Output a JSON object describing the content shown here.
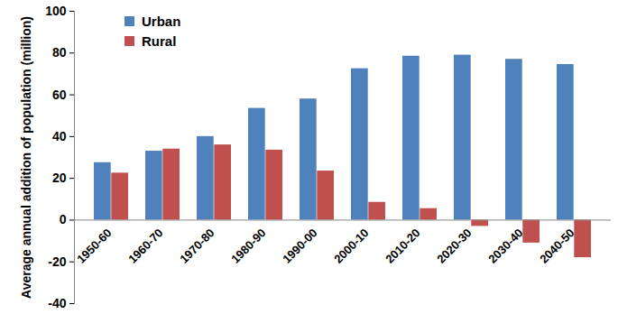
{
  "chart_data": {
    "type": "bar",
    "y_label": "Average annual addition of population (million)",
    "categories": [
      "1950-60",
      "1960-70",
      "1970-80",
      "1980-90",
      "1990-00",
      "2000-10",
      "2010-20",
      "2020-30",
      "2030-40",
      "2040-50"
    ],
    "series": [
      {
        "name": "Urban",
        "color": "#4f81bd",
        "values": [
          27.5,
          33,
          40,
          53.5,
          58,
          72.5,
          78.5,
          79,
          77,
          74.5
        ]
      },
      {
        "name": "Rural",
        "color": "#c0504d",
        "values": [
          22.5,
          34,
          36,
          33.5,
          23.5,
          8.5,
          5.5,
          -3,
          -11,
          -18
        ]
      }
    ],
    "ylim": [
      -40,
      100
    ],
    "yticks": [
      -40,
      -20,
      0,
      20,
      40,
      60,
      80,
      100
    ],
    "grid": false,
    "legend": "top-left"
  }
}
